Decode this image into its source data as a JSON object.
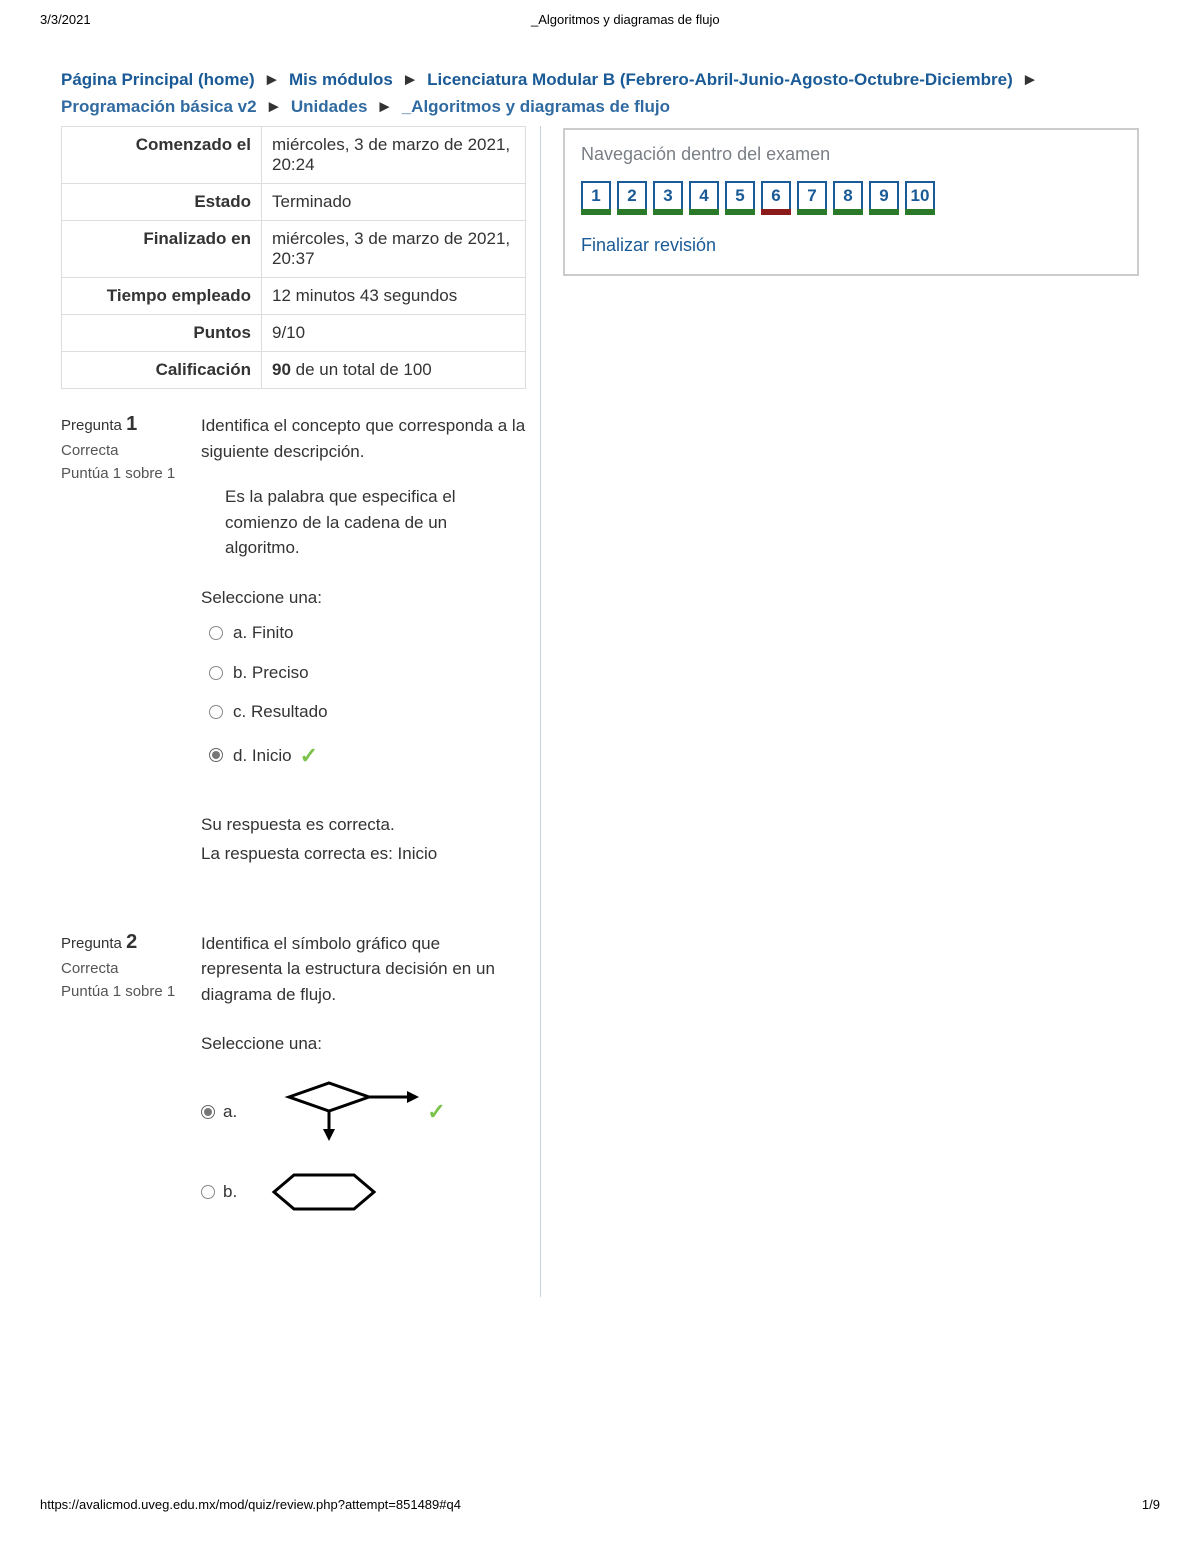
{
  "print": {
    "date": "3/3/2021",
    "title": "_Algoritmos y diagramas de flujo",
    "url": "https://avalicmod.uveg.edu.mx/mod/quiz/review.php?attempt=851489#q4",
    "page": "1/9"
  },
  "breadcrumb": {
    "items": [
      "Página Principal (home)",
      "Mis módulos",
      "Licenciatura Modular B (Febrero-Abril-Junio-Agosto-Octubre-Diciembre)",
      "Programación básica v2",
      "Unidades",
      "_Algoritmos y diagramas de flujo"
    ],
    "sep": "►"
  },
  "summary": {
    "rows": [
      {
        "label": "Comenzado el",
        "value": "miércoles, 3 de marzo de 2021, 20:24"
      },
      {
        "label": "Estado",
        "value": "Terminado"
      },
      {
        "label": "Finalizado en",
        "value": "miércoles, 3 de marzo de 2021, 20:37"
      },
      {
        "label": "Tiempo empleado",
        "value": "12 minutos 43 segundos"
      },
      {
        "label": "Puntos",
        "value": "9/10"
      },
      {
        "label": "Calificación",
        "value_bold": "90",
        "value_rest": " de un total de 100"
      }
    ]
  },
  "q1": {
    "label": "Pregunta",
    "number": "1",
    "state": "Correcta",
    "grade": "Puntúa 1 sobre 1",
    "prompt": "Identifica el concepto que corresponda a la siguiente descripción.",
    "desc": "Es la palabra que especifica el comienzo de la cadena de un algoritmo.",
    "select": "Seleccione una:",
    "answers": [
      {
        "letter": "a.",
        "text": "Finito",
        "selected": false,
        "correct": false
      },
      {
        "letter": "b.",
        "text": "Preciso",
        "selected": false,
        "correct": false
      },
      {
        "letter": "c.",
        "text": "Resultado",
        "selected": false,
        "correct": false
      },
      {
        "letter": "d.",
        "text": "Inicio",
        "selected": true,
        "correct": true
      }
    ],
    "feedback1": "Su respuesta es correcta.",
    "feedback2": "La respuesta correcta es: Inicio"
  },
  "q2": {
    "label": "Pregunta",
    "number": "2",
    "state": "Correcta",
    "grade": "Puntúa 1 sobre 1",
    "prompt": "Identifica el símbolo gráfico que representa la estructura decisión en un diagrama de flujo.",
    "select": "Seleccione una:",
    "opt_a": "a.",
    "opt_b": "b."
  },
  "nav": {
    "title": "Navegación dentro del examen",
    "items": [
      {
        "n": "1",
        "status": "correct"
      },
      {
        "n": "2",
        "status": "correct"
      },
      {
        "n": "3",
        "status": "correct"
      },
      {
        "n": "4",
        "status": "correct"
      },
      {
        "n": "5",
        "status": "correct"
      },
      {
        "n": "6",
        "status": "incorrect"
      },
      {
        "n": "7",
        "status": "correct"
      },
      {
        "n": "8",
        "status": "correct"
      },
      {
        "n": "9",
        "status": "correct"
      },
      {
        "n": "10",
        "status": "correct"
      }
    ],
    "finish": "Finalizar revisión"
  },
  "colors": {
    "link": "#1a5a96",
    "border": "#cccccc",
    "correct_bar": "#2a7a2a",
    "incorrect_bar": "#8b1a1a",
    "check": "#7bc24a"
  }
}
